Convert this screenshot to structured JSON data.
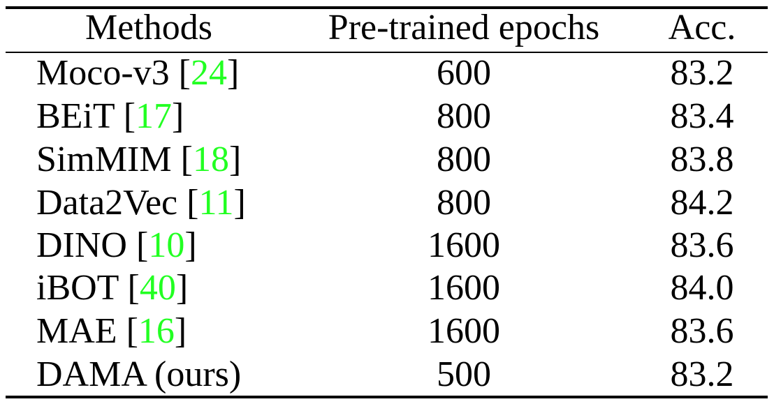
{
  "table": {
    "headers": {
      "methods": "Methods",
      "epochs": "Pre-trained epochs",
      "acc": "Acc."
    },
    "rows": [
      {
        "method": "Moco-v3",
        "ref": "24",
        "epochs": "600",
        "acc": "83.2"
      },
      {
        "method": "BEiT",
        "ref": "17",
        "epochs": "800",
        "acc": "83.4"
      },
      {
        "method": "SimMIM",
        "ref": "18",
        "epochs": "800",
        "acc": "83.8"
      },
      {
        "method": "Data2Vec",
        "ref": "11",
        "epochs": "800",
        "acc": "84.2"
      },
      {
        "method": "DINO",
        "ref": "10",
        "epochs": "1600",
        "acc": "83.6"
      },
      {
        "method": "iBOT",
        "ref": "40",
        "epochs": "1600",
        "acc": "84.0"
      },
      {
        "method": "MAE",
        "ref": "16",
        "epochs": "1600",
        "acc": "83.6"
      },
      {
        "method": "DAMA (ours)",
        "ref": "",
        "epochs": "500",
        "acc": "83.2"
      }
    ]
  },
  "colors": {
    "citation": "#22ff22",
    "text": "#000000"
  }
}
